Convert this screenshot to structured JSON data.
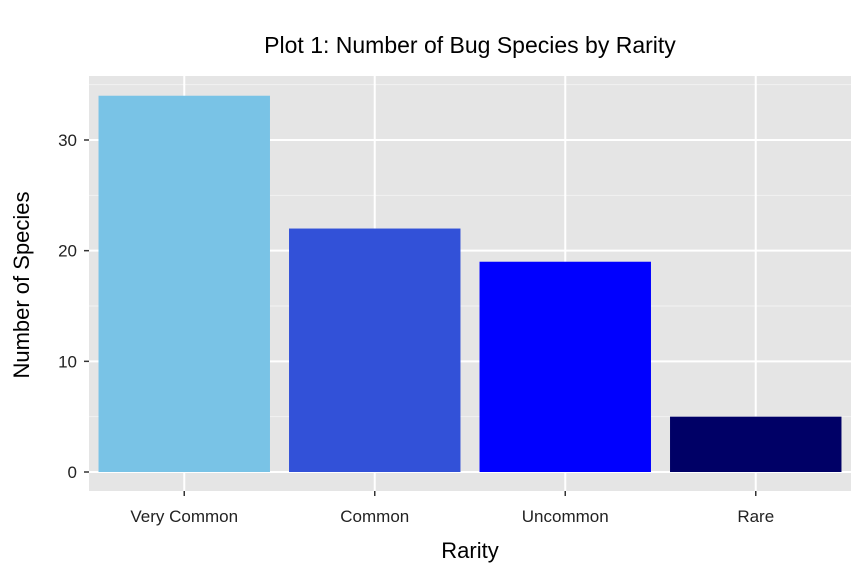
{
  "chart_data": {
    "type": "bar",
    "title": "Plot 1: Number of Bug Species by Rarity",
    "xlabel": "Rarity",
    "ylabel": "Number of Species",
    "categories": [
      "Very Common",
      "Common",
      "Uncommon",
      "Rare"
    ],
    "values": [
      34,
      22,
      19,
      5
    ],
    "colors": [
      "#79c3e6",
      "#3251d8",
      "#0000ff",
      "#000066"
    ],
    "ylim": [
      0,
      35
    ],
    "yticks": [
      0,
      10,
      20,
      30
    ],
    "grid": true,
    "legend": "none",
    "background": "#e5e5e5"
  }
}
